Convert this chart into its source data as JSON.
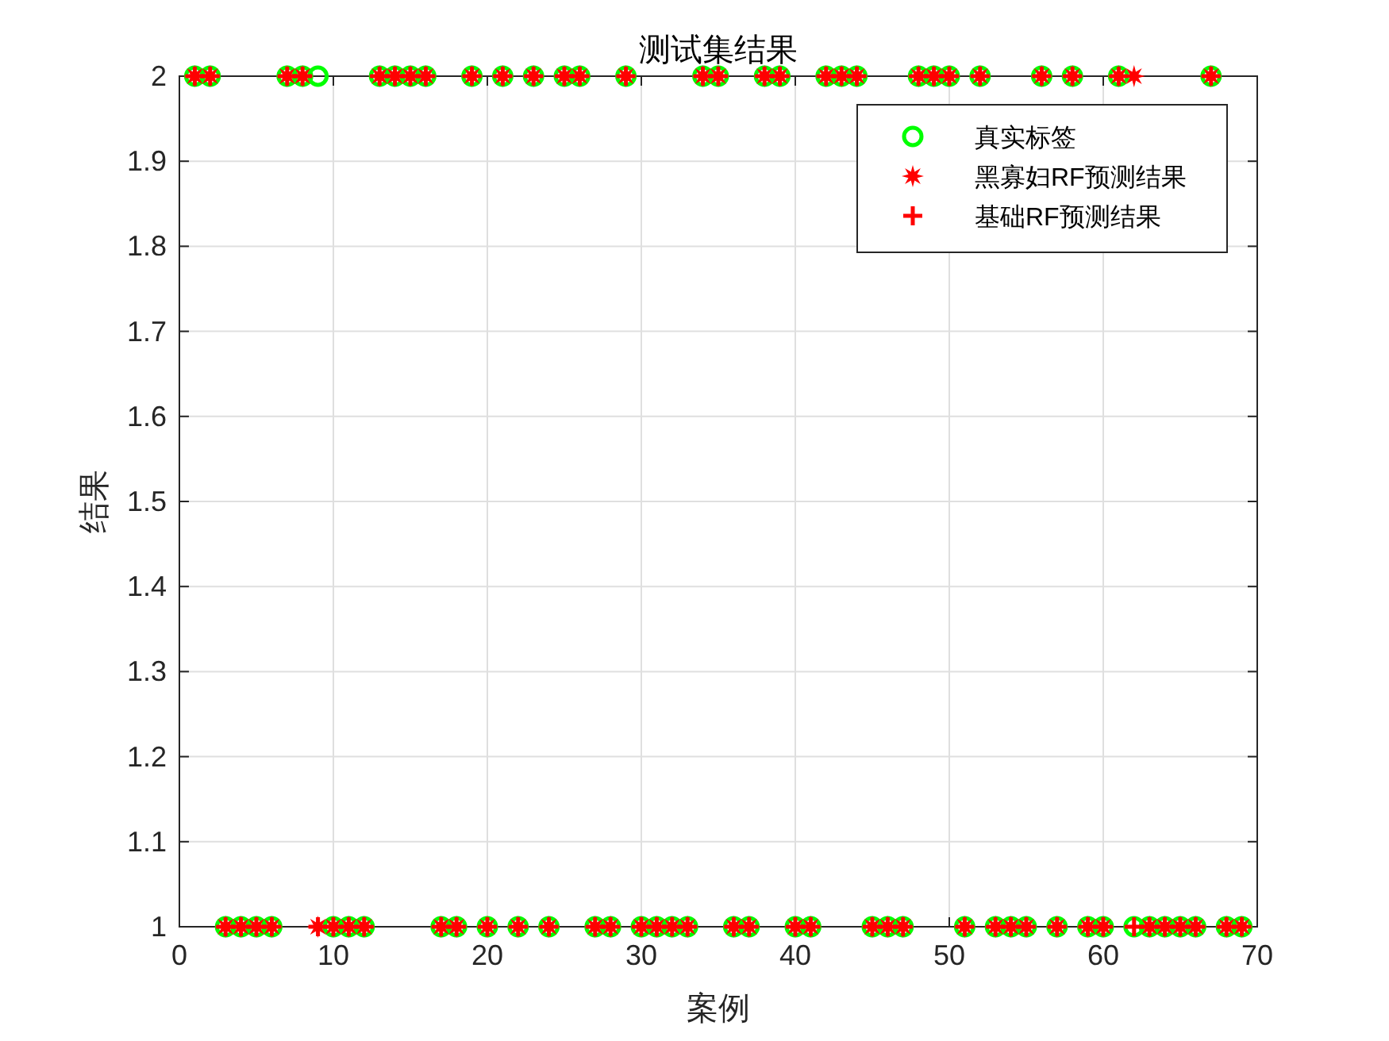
{
  "chart_data": {
    "type": "scatter",
    "title": "测试集结果",
    "xlabel": "案例",
    "ylabel": "结果",
    "x": [
      1,
      2,
      3,
      4,
      5,
      6,
      7,
      8,
      9,
      10,
      11,
      12,
      13,
      14,
      15,
      16,
      17,
      18,
      19,
      20,
      21,
      22,
      23,
      24,
      25,
      26,
      27,
      28,
      29,
      30,
      31,
      32,
      33,
      34,
      35,
      36,
      37,
      38,
      39,
      40,
      41,
      42,
      43,
      44,
      45,
      46,
      47,
      48,
      49,
      50,
      51,
      52,
      53,
      54,
      55,
      56,
      57,
      58,
      59,
      60,
      61,
      62,
      63,
      64,
      65,
      66,
      67,
      68,
      69
    ],
    "series": [
      {
        "name": "真实标签",
        "color": "#00ff00",
        "marker": "circle",
        "values": [
          2,
          2,
          1,
          1,
          1,
          1,
          2,
          2,
          2,
          1,
          1,
          1,
          2,
          2,
          2,
          2,
          1,
          1,
          2,
          1,
          2,
          1,
          2,
          1,
          2,
          2,
          1,
          1,
          2,
          1,
          1,
          1,
          1,
          2,
          2,
          1,
          1,
          2,
          2,
          1,
          1,
          2,
          2,
          2,
          1,
          1,
          1,
          2,
          2,
          2,
          1,
          2,
          1,
          1,
          1,
          2,
          1,
          2,
          1,
          1,
          2,
          1,
          1,
          1,
          1,
          1,
          2,
          1,
          1
        ]
      },
      {
        "name": "黑寡妇RF预测结果",
        "color": "#ff0000",
        "marker": "star",
        "values": [
          2,
          2,
          1,
          1,
          1,
          1,
          2,
          2,
          1,
          1,
          1,
          1,
          2,
          2,
          2,
          2,
          1,
          1,
          2,
          1,
          2,
          1,
          2,
          1,
          2,
          2,
          1,
          1,
          2,
          1,
          1,
          1,
          1,
          2,
          2,
          1,
          1,
          2,
          2,
          1,
          1,
          2,
          2,
          2,
          1,
          1,
          1,
          2,
          2,
          2,
          1,
          2,
          1,
          1,
          1,
          2,
          1,
          2,
          1,
          1,
          2,
          2,
          1,
          1,
          1,
          1,
          2,
          1,
          1
        ]
      },
      {
        "name": "基础RF预测结果",
        "color": "#ff0000",
        "marker": "cross",
        "values": [
          2,
          2,
          1,
          1,
          1,
          1,
          2,
          2,
          1,
          1,
          1,
          1,
          2,
          2,
          2,
          2,
          1,
          1,
          2,
          1,
          2,
          1,
          2,
          1,
          2,
          2,
          1,
          1,
          2,
          1,
          1,
          1,
          1,
          2,
          2,
          1,
          1,
          2,
          2,
          1,
          1,
          2,
          2,
          2,
          1,
          1,
          1,
          2,
          2,
          2,
          1,
          2,
          1,
          1,
          1,
          2,
          1,
          2,
          1,
          1,
          2,
          1,
          1,
          1,
          1,
          1,
          2,
          1,
          1
        ]
      }
    ],
    "xlim": [
      0,
      70
    ],
    "xticks": [
      0,
      10,
      20,
      30,
      40,
      50,
      60,
      70
    ],
    "ylim": [
      1,
      2
    ],
    "yticks": [
      1,
      1.1,
      1.2,
      1.3,
      1.4,
      1.5,
      1.6,
      1.7,
      1.8,
      1.9,
      2
    ],
    "grid": true,
    "legend": "top right"
  }
}
